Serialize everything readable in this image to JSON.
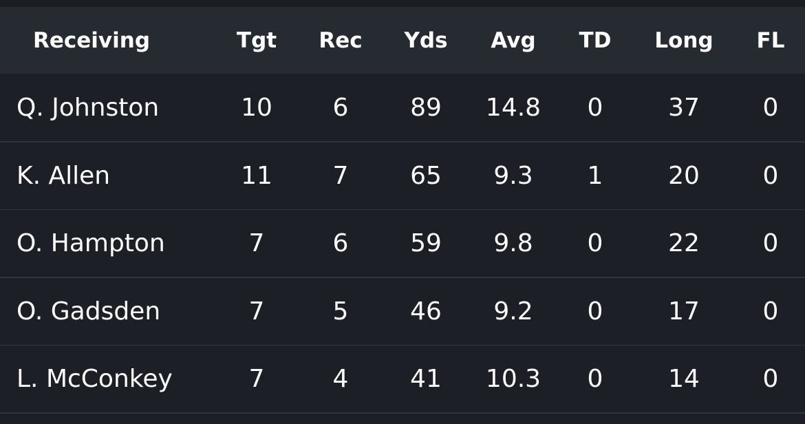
{
  "table": {
    "header": [
      "Receiving",
      "Tgt",
      "Rec",
      "Yds",
      "Avg",
      "TD",
      "Long",
      "FL"
    ],
    "rows": [
      [
        "Q. Johnston",
        10,
        6,
        89,
        14.8,
        0,
        37,
        0
      ],
      [
        "K. Allen",
        11,
        7,
        65,
        9.3,
        1,
        20,
        0
      ],
      [
        "O. Hampton",
        7,
        6,
        59,
        9.8,
        0,
        22,
        0
      ],
      [
        "O. Gadsden",
        7,
        5,
        46,
        9.2,
        0,
        17,
        0
      ],
      [
        "L. McConkey",
        7,
        4,
        41,
        10.3,
        0,
        14,
        0
      ]
    ]
  }
}
